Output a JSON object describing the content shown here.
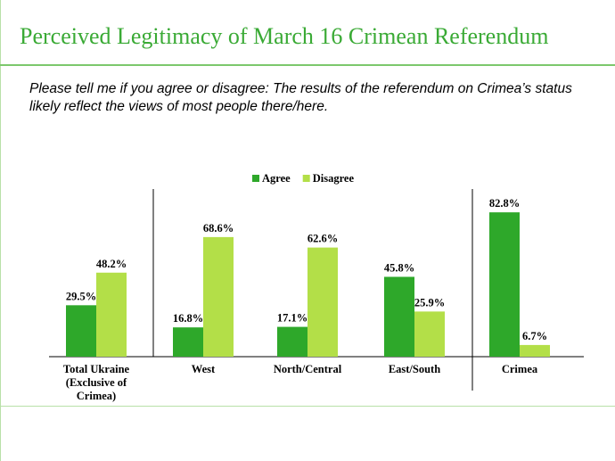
{
  "chart_data": {
    "type": "bar",
    "title": "Perceived Legitimacy of March 16 Crimean Referendum",
    "subtitle": "Please tell me if you agree or disagree: The results of the referendum on Crimea’s status likely reflect the views of most people there/here.",
    "categories": [
      "Total Ukraine (Exclusive of Crimea)",
      "West",
      "North/Central",
      "East/South",
      "Crimea"
    ],
    "series": [
      {
        "name": "Agree",
        "color": "#2ea82a",
        "values": [
          29.5,
          16.8,
          17.1,
          45.8,
          82.8
        ],
        "value_labels": [
          "29.5%",
          "16.8%",
          "17.1%",
          "45.8%",
          "82.8%"
        ]
      },
      {
        "name": "Disagree",
        "color": "#b3df48",
        "values": [
          48.2,
          68.6,
          62.6,
          25.9,
          6.7
        ],
        "value_labels": [
          "48.2%",
          "68.6%",
          "62.6%",
          "25.9%",
          "6.7%"
        ]
      }
    ],
    "legend": "top"
  }
}
